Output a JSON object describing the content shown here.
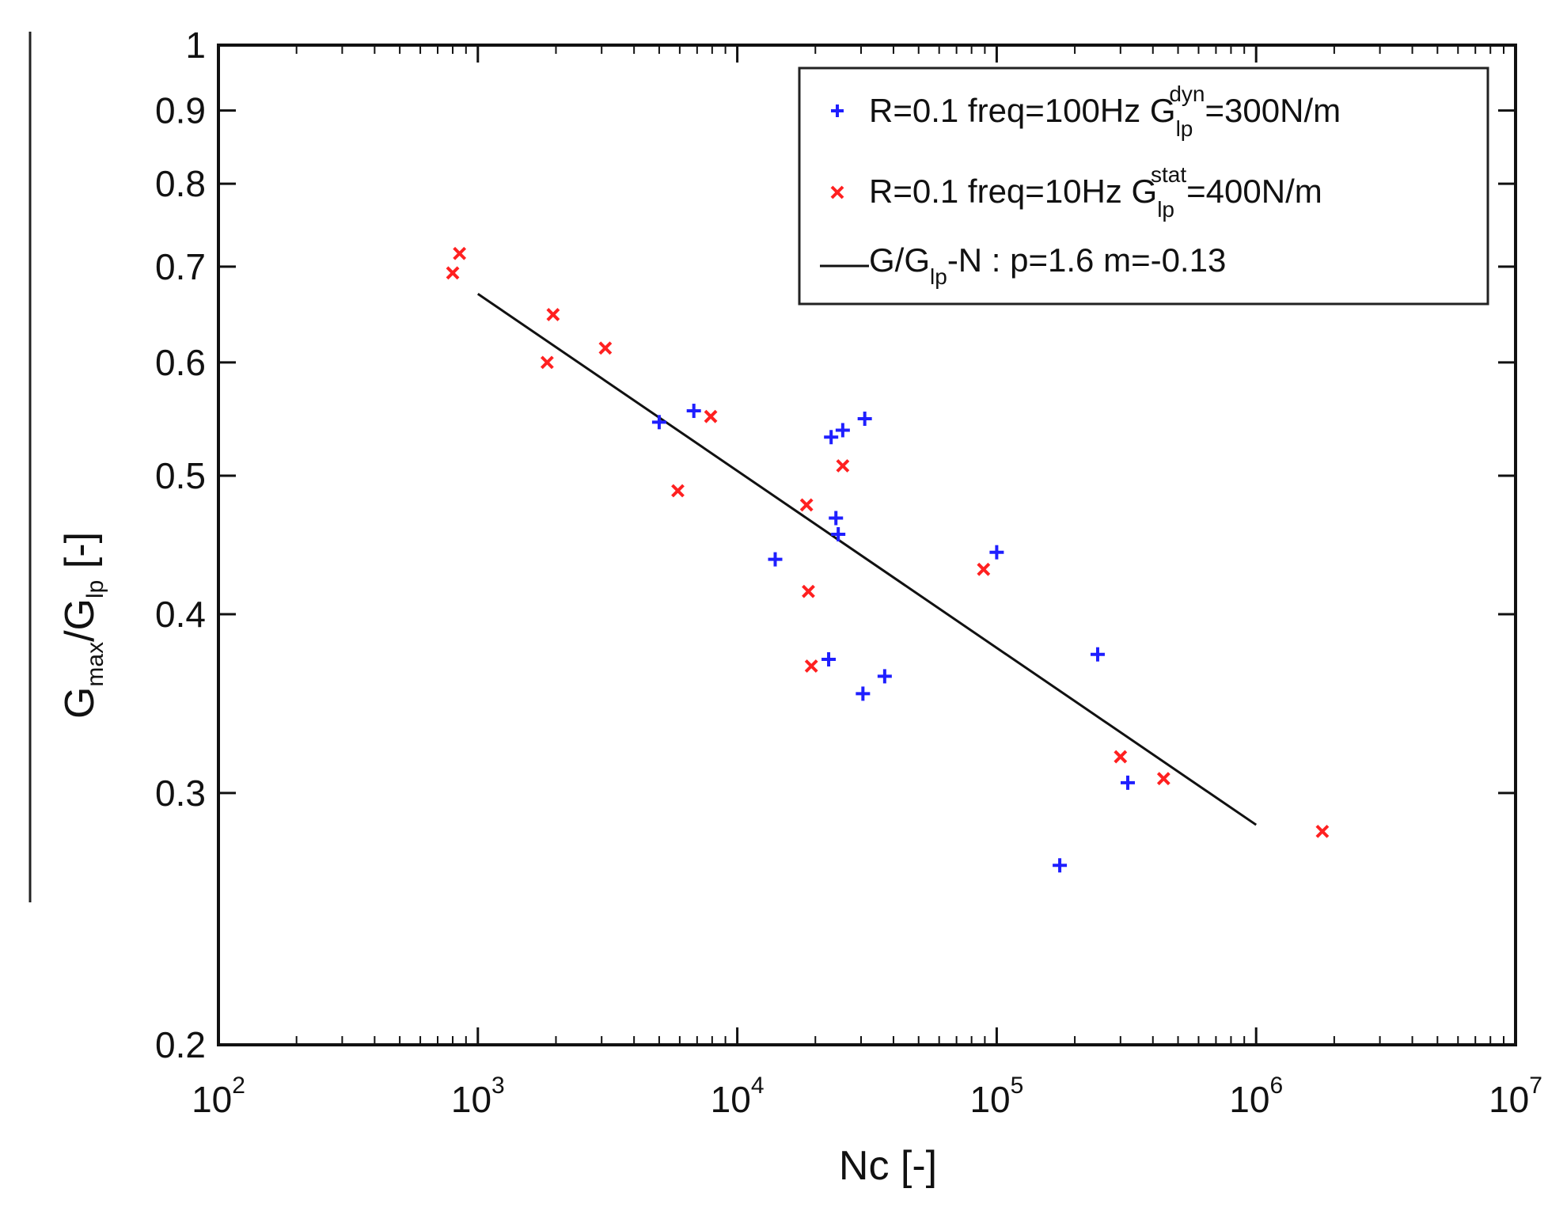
{
  "chart_data": {
    "type": "scatter",
    "x_scale": "log",
    "y_scale": "log",
    "xlim": [
      100,
      10000000
    ],
    "ylim": [
      0.2,
      1
    ],
    "x_tick_base": "10",
    "x_tick_exponents": [
      "2",
      "3",
      "4",
      "5",
      "6",
      "7"
    ],
    "y_ticks": [
      0.2,
      0.3,
      0.4,
      0.5,
      0.6,
      0.7,
      0.8,
      0.9,
      1
    ],
    "y_tick_labels": [
      "0.2",
      "0.3",
      "0.4",
      "0.5",
      "0.6",
      "0.7",
      "0.8",
      "0.9",
      "1"
    ],
    "xlabel": "Nc [-]",
    "ylabel": {
      "main": "G",
      "main_sub": "max",
      "slash": "/G",
      "slash_sub": "lp",
      "unit": " [-]"
    },
    "grid": false,
    "legend_placement": "top-right",
    "series": [
      {
        "legend": {
          "prefix": "R=0.1 freq=100Hz G",
          "sub": "lp",
          "sup": "dyn",
          "suffix": "=300N/m"
        },
        "marker": "plus",
        "color": "#1f1fff",
        "x": [
          5000,
          6800,
          14000,
          22500,
          23000,
          24000,
          24500,
          25500,
          31000,
          30500,
          37000,
          100000,
          245000,
          320000,
          175000
        ],
        "y": [
          0.545,
          0.555,
          0.437,
          0.372,
          0.532,
          0.467,
          0.455,
          0.538,
          0.548,
          0.352,
          0.362,
          0.442,
          0.375,
          0.305,
          0.267
        ]
      },
      {
        "legend": {
          "prefix": "R=0.1 freq=10Hz G",
          "sub": "lp",
          "sup": "stat",
          "suffix": "=400N/m"
        },
        "marker": "x",
        "color": "#ff2020",
        "x": [
          800,
          850,
          1850,
          1950,
          3100,
          5900,
          7900,
          18500,
          18800,
          19300,
          25500,
          89000,
          300000,
          440000,
          1800000
        ],
        "y": [
          0.693,
          0.715,
          0.6,
          0.648,
          0.614,
          0.488,
          0.55,
          0.477,
          0.415,
          0.368,
          0.508,
          0.43,
          0.318,
          0.307,
          0.282
        ]
      },
      {
        "legend": {
          "prefix": "G/G",
          "sub": "lp",
          "suffix": "-N : p=1.6 m=-0.13"
        },
        "type": "line",
        "color": "#111111",
        "x": [
          1000,
          1000000
        ],
        "y": [
          0.67,
          0.285
        ]
      }
    ]
  }
}
